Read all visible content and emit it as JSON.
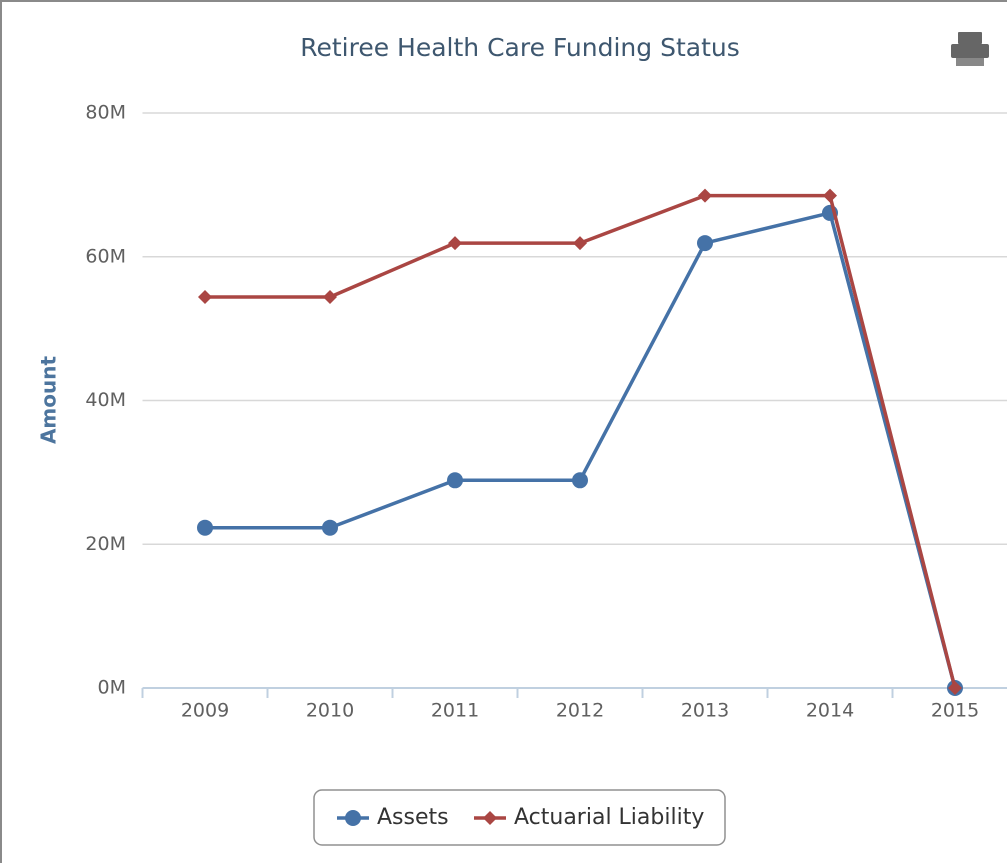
{
  "chart_data": {
    "type": "line",
    "title": "Retiree Health Care Funding Status",
    "y_label": "Amount",
    "categories": [
      "2009",
      "2010",
      "2011",
      "2012",
      "2013",
      "2014",
      "2015"
    ],
    "series": [
      {
        "name": "Assets",
        "color": "#4572a7",
        "marker": "circle",
        "values": [
          22.3,
          22.3,
          28.9,
          28.9,
          61.9,
          66.1,
          0
        ]
      },
      {
        "name": "Actuarial Liability",
        "color": "#aa4643",
        "marker": "diamond",
        "values": [
          54.4,
          54.4,
          61.9,
          61.9,
          68.5,
          68.5,
          0
        ]
      }
    ],
    "ylim": [
      0,
      80
    ],
    "yticks": [
      {
        "value": 0,
        "label": "0M"
      },
      {
        "value": 20,
        "label": "20M"
      },
      {
        "value": 40,
        "label": "40M"
      },
      {
        "value": 60,
        "label": "60M"
      },
      {
        "value": 80,
        "label": "80M"
      }
    ],
    "grid": true,
    "legend": "bottom"
  }
}
